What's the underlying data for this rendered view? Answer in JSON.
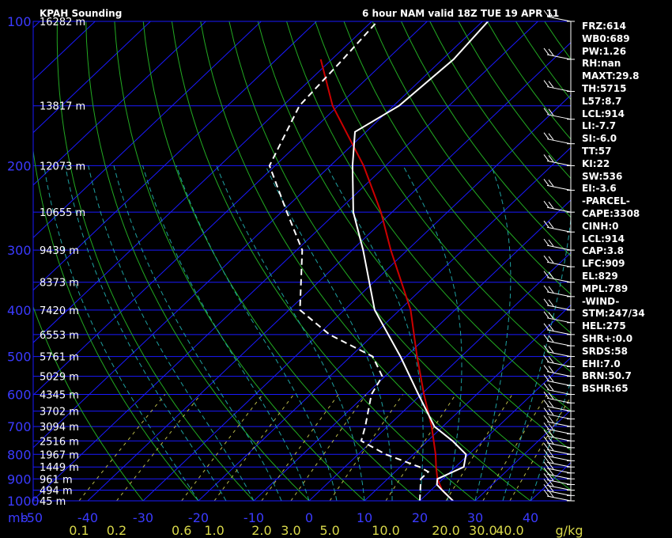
{
  "title_left": "KPAH Sounding",
  "title_right": "6 hour NAM valid 18Z TUE 19 APR 11",
  "chart_data": {
    "type": "skew-t",
    "pressure_ticks": [
      "100",
      "200",
      "300",
      "400",
      "500",
      "600",
      "700",
      "800",
      "900",
      "1000"
    ],
    "pressure_values": [
      100,
      200,
      300,
      400,
      500,
      600,
      700,
      800,
      900,
      1000
    ],
    "height_labels": [
      "16282 m",
      "13817 m",
      "12073 m",
      "10655 m",
      "9439 m",
      "8373 m",
      "7420 m",
      "6553 m",
      "5761 m",
      "5029 m",
      "4345 m",
      "3702 m",
      "3094 m",
      "2516 m",
      "1967 m",
      "1449 m",
      "961 m",
      "494 m",
      "45 m"
    ],
    "height_pressures": [
      100,
      150,
      200,
      250,
      300,
      350,
      400,
      450,
      500,
      550,
      600,
      650,
      700,
      750,
      800,
      850,
      900,
      950,
      1000
    ],
    "x_axis_label": "mb",
    "temp_ticks": [
      "-50",
      "-40",
      "-30",
      "-20",
      "-10",
      "0",
      "10",
      "20",
      "30",
      "40"
    ],
    "temp_values": [
      -50,
      -40,
      -30,
      -20,
      -10,
      0,
      10,
      20,
      30,
      40
    ],
    "mixing_ratio_label": "g/kg",
    "mixing_ratio_ticks": [
      "0.1",
      "0.2",
      "0.6",
      "1.0",
      "2.0",
      "3.0",
      "5.0",
      "10.0",
      "20.0",
      "30.0",
      "40.0"
    ],
    "mixing_ratio_values": [
      0.1,
      0.2,
      0.6,
      1.0,
      2.0,
      3.0,
      5.0,
      10.0,
      20.0,
      30.0,
      40.0
    ],
    "temperature_profile": [
      {
        "p": 1000,
        "t": 26
      },
      {
        "p": 950,
        "t": 22
      },
      {
        "p": 925,
        "t": 20
      },
      {
        "p": 900,
        "t": 19
      },
      {
        "p": 850,
        "t": 21.5
      },
      {
        "p": 800,
        "t": 19.5
      },
      {
        "p": 750,
        "t": 14.5
      },
      {
        "p": 700,
        "t": 8.5
      },
      {
        "p": 600,
        "t": -0.5
      },
      {
        "p": 500,
        "t": -11
      },
      {
        "p": 400,
        "t": -24.5
      },
      {
        "p": 300,
        "t": -38
      },
      {
        "p": 250,
        "t": -47
      },
      {
        "p": 200,
        "t": -56
      },
      {
        "p": 170,
        "t": -62
      },
      {
        "p": 150,
        "t": -59
      },
      {
        "p": 120,
        "t": -58
      },
      {
        "p": 100,
        "t": -59
      }
    ],
    "dewpoint_profile": [
      {
        "p": 1000,
        "t": 20
      },
      {
        "p": 900,
        "t": 16
      },
      {
        "p": 870,
        "t": 16
      },
      {
        "p": 850,
        "t": 13.5
      },
      {
        "p": 800,
        "t": 5
      },
      {
        "p": 750,
        "t": -2
      },
      {
        "p": 700,
        "t": -4
      },
      {
        "p": 600,
        "t": -9
      },
      {
        "p": 550,
        "t": -10.5
      },
      {
        "p": 500,
        "t": -16
      },
      {
        "p": 450,
        "t": -28
      },
      {
        "p": 400,
        "t": -38
      },
      {
        "p": 300,
        "t": -49
      },
      {
        "p": 250,
        "t": -59
      },
      {
        "p": 200,
        "t": -71
      },
      {
        "p": 150,
        "t": -77
      },
      {
        "p": 120,
        "t": -78
      },
      {
        "p": 100,
        "t": -79
      }
    ],
    "parcel_profile": [
      {
        "p": 1000,
        "t": 26
      },
      {
        "p": 950,
        "t": 22
      },
      {
        "p": 900,
        "t": 19
      },
      {
        "p": 850,
        "t": 16.5
      },
      {
        "p": 800,
        "t": 14
      },
      {
        "p": 700,
        "t": 8
      },
      {
        "p": 600,
        "t": 0.5
      },
      {
        "p": 500,
        "t": -8
      },
      {
        "p": 400,
        "t": -18
      },
      {
        "p": 300,
        "t": -33
      },
      {
        "p": 250,
        "t": -42
      },
      {
        "p": 200,
        "t": -54
      },
      {
        "p": 150,
        "t": -71
      },
      {
        "p": 120,
        "t": -82
      }
    ],
    "wind_pressures": [
      100,
      120,
      140,
      160,
      180,
      200,
      225,
      250,
      275,
      300,
      325,
      350,
      375,
      400,
      425,
      450,
      475,
      500,
      525,
      550,
      575,
      600,
      625,
      650,
      675,
      700,
      725,
      750,
      775,
      800,
      825,
      850,
      875,
      900,
      925,
      950,
      975,
      1000
    ]
  },
  "indices": [
    "FRZ:614",
    "WB0:689",
    "PW:1.26",
    "RH:nan",
    "MAXT:29.8",
    "TH:5715",
    "L57:8.7",
    "LCL:914",
    "LI:-7.7",
    "SI:-6.0",
    "TT:57",
    "KI:22",
    "SW:536",
    "EI:-3.6",
    "-PARCEL-",
    "CAPE:3308",
    "CINH:0",
    "LCL:914",
    "CAP:3.8",
    "LFC:909",
    "EL:829",
    "MPL:789",
    "-WIND-",
    "STM:247/34",
    "HEL:275",
    "SHR+:0.0",
    "SRDS:58",
    "EHI:7.0",
    "BRN:50.7",
    "BSHR:65"
  ],
  "colors": {
    "isobar": "#1a1aff",
    "isotherm": "#1a1aff",
    "dry_adiabat": "#22aa22",
    "moist_adiabat": "#1ea0a0",
    "mixing_ratio": "#b9b94a",
    "temperature": "#ffffff",
    "dewpoint": "#ffffff",
    "parcel": "#cc0000",
    "axis_text": "#3b3bff",
    "mix_text": "#d8d84a",
    "text": "#ffffff"
  }
}
